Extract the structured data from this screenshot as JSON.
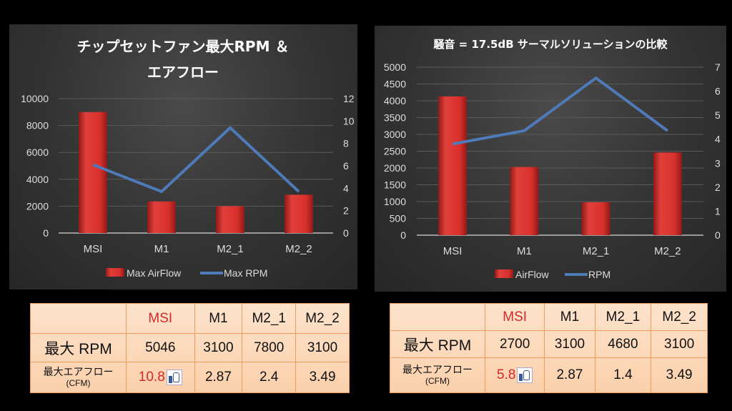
{
  "chart_data": [
    {
      "type": "bar+line",
      "title_line1": "チップセットファン最大RPM ＆",
      "title_line2": "エアフロー",
      "categories": [
        "MSI",
        "M1",
        "M2_1",
        "M2_2"
      ],
      "series": [
        {
          "name": "Max AirFlow",
          "type": "bar",
          "axis": "left",
          "values": [
            9000,
            2350,
            2000,
            2850
          ],
          "color": "#d9302c"
        },
        {
          "name": "Max RPM",
          "type": "line",
          "axis": "right",
          "values": [
            6.1,
            3.7,
            9.4,
            3.7
          ],
          "color": "#4f7ab8"
        }
      ],
      "ylim_left": [
        0,
        10000
      ],
      "yticks_left": [
        "0",
        "2000",
        "4000",
        "6000",
        "8000",
        "10000"
      ],
      "ylim_right": [
        0,
        12
      ],
      "yticks_right": [
        "0",
        "2",
        "4",
        "6",
        "8",
        "10",
        "12"
      ],
      "grid": true,
      "legend": "bottom"
    },
    {
      "type": "bar+line",
      "title_line1": "騒音 = 17.5dB サーマルソリューションの比較",
      "title_line2": "",
      "categories": [
        "MSI",
        "M1",
        "M2_1",
        "M2_2"
      ],
      "series": [
        {
          "name": "AirFlow",
          "type": "bar",
          "axis": "left",
          "values": [
            4130,
            2030,
            980,
            2460
          ],
          "color": "#d9302c"
        },
        {
          "name": "RPM",
          "type": "line",
          "axis": "right",
          "values": [
            3.8,
            4.35,
            6.55,
            4.35
          ],
          "color": "#4f7ab8"
        }
      ],
      "ylim_left": [
        0,
        5000
      ],
      "yticks_left": [
        "0",
        "500",
        "1000",
        "1500",
        "2000",
        "2500",
        "3000",
        "3500",
        "4000",
        "4500",
        "5000"
      ],
      "ylim_right": [
        0,
        7
      ],
      "yticks_right": [
        "0",
        "1",
        "2",
        "3",
        "4",
        "5",
        "6",
        "7"
      ],
      "grid": true,
      "legend": "bottom"
    }
  ],
  "tables": [
    {
      "headers": [
        "MSI",
        "M1",
        "M2_1",
        "M2_2"
      ],
      "rpm_label": "最大 RPM",
      "rpm": [
        "5046",
        "3100",
        "7800",
        "3100"
      ],
      "airflow_label": "最大エアフロー",
      "airflow_unit": "(CFM)",
      "airflow": [
        "10.8",
        "2.87",
        "2.4",
        "3.49"
      ]
    },
    {
      "headers": [
        "MSI",
        "M1",
        "M2_1",
        "M2_2"
      ],
      "rpm_label": "最大 RPM",
      "rpm": [
        "2700",
        "3100",
        "4680",
        "3100"
      ],
      "airflow_label": "最大エアフロー",
      "airflow_unit": "(CFM)",
      "airflow": [
        "5.8",
        "2.87",
        "1.4",
        "3.49"
      ]
    }
  ]
}
